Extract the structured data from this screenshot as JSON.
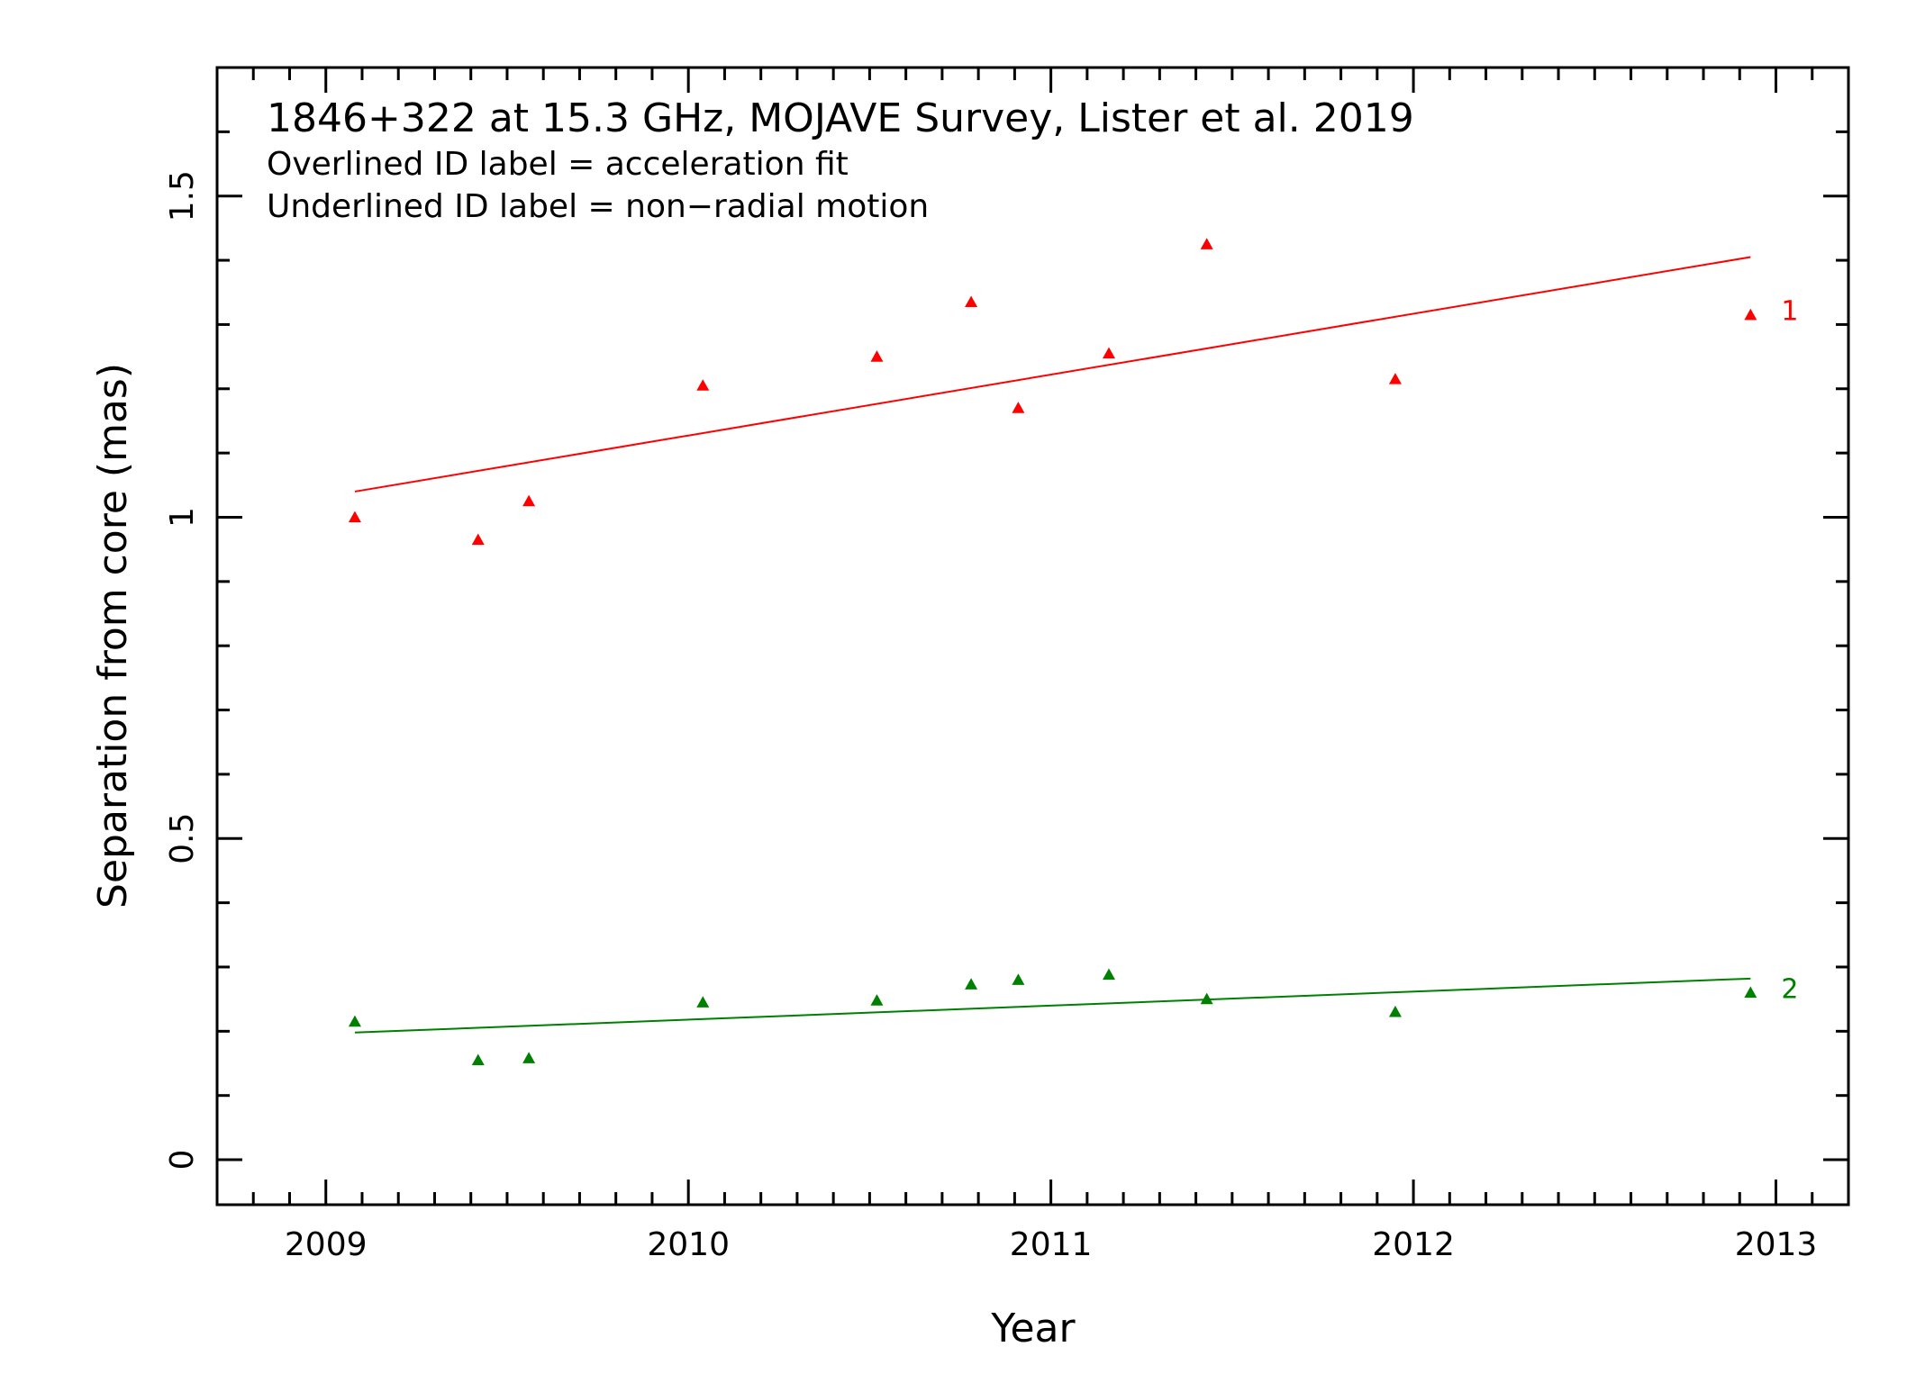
{
  "chart_data": {
    "type": "scatter",
    "annotations": [
      "1846+322 at 15.3 GHz, MOJAVE Survey, Lister et al. 2019",
      "Overlined ID label = acceleration fit",
      "Underlined ID label = non−radial motion"
    ],
    "xlabel": "Year",
    "ylabel": "Separation from core (mas)",
    "xlim": [
      2008.7,
      2013.2
    ],
    "ylim": [
      -0.07,
      1.7
    ],
    "x_ticks": [
      "2009",
      "2010",
      "2011",
      "2012",
      "2013"
    ],
    "x_tick_values": [
      2009,
      2010,
      2011,
      2012,
      2013
    ],
    "y_ticks": [
      "0",
      "0.5",
      "1",
      "1.5"
    ],
    "y_tick_values": [
      0,
      0.5,
      1,
      1.5
    ],
    "x_minor_step": 0.1,
    "y_minor_step": 0.1,
    "marker": "triangle",
    "series": [
      {
        "name": "1",
        "color": "#ff0000",
        "x": [
          2009.08,
          2009.42,
          2009.56,
          2010.04,
          2010.52,
          2010.78,
          2010.91,
          2011.16,
          2011.43,
          2011.95,
          2012.93
        ],
        "y": [
          1.0,
          0.965,
          1.025,
          1.205,
          1.25,
          1.335,
          1.17,
          1.255,
          1.425,
          1.215,
          1.315
        ],
        "fit": {
          "x": [
            2009.08,
            2012.93
          ],
          "y": [
            1.04,
            1.405
          ]
        }
      },
      {
        "name": "2",
        "color": "#008000",
        "x": [
          2009.08,
          2009.42,
          2009.56,
          2010.04,
          2010.52,
          2010.78,
          2010.91,
          2011.16,
          2011.43,
          2011.95,
          2012.93
        ],
        "y": [
          0.215,
          0.155,
          0.158,
          0.245,
          0.248,
          0.273,
          0.28,
          0.288,
          0.25,
          0.23,
          0.26
        ],
        "fit": {
          "x": [
            2009.08,
            2012.93
          ],
          "y": [
            0.198,
            0.282
          ]
        }
      }
    ]
  }
}
